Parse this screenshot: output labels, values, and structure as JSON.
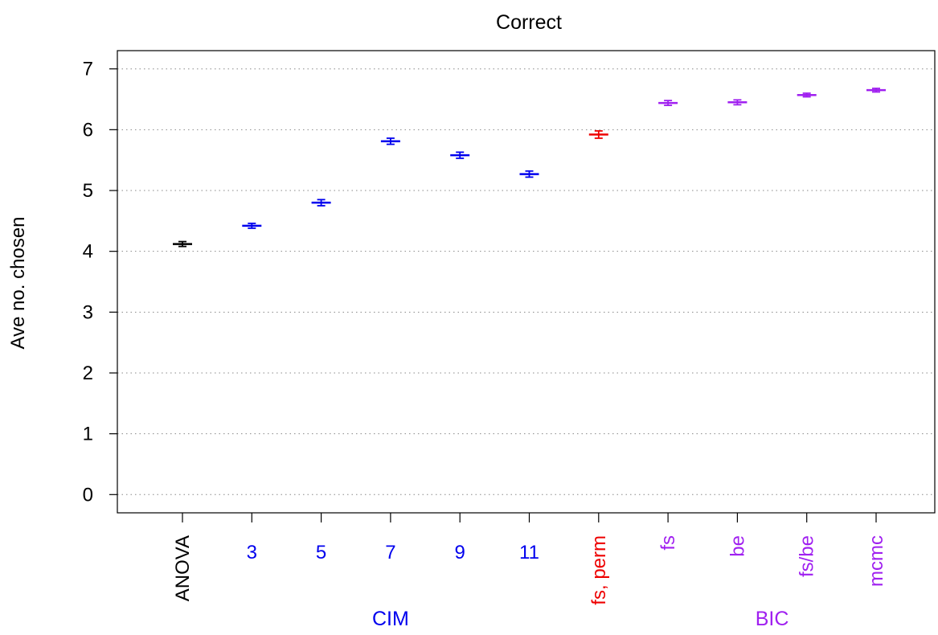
{
  "chart_data": {
    "type": "scatter",
    "title": "Correct",
    "ylabel": "Ave no. chosen",
    "xlabel": "",
    "ylim": [
      -0.3,
      7.3
    ],
    "yticks": [
      0,
      1,
      2,
      3,
      4,
      5,
      6,
      7
    ],
    "grid": true,
    "categories": [
      "ANOVA",
      "3",
      "5",
      "7",
      "9",
      "11",
      "fs, perm",
      "fs",
      "be",
      "fs/be",
      "mcmc"
    ],
    "values": [
      4.12,
      4.42,
      4.8,
      5.81,
      5.58,
      5.27,
      5.92,
      6.44,
      6.45,
      6.57,
      6.65
    ],
    "errors": [
      0.04,
      0.04,
      0.05,
      0.05,
      0.05,
      0.05,
      0.06,
      0.04,
      0.04,
      0.03,
      0.03
    ],
    "colors": [
      "#000000",
      "#0000ee",
      "#0000ee",
      "#0000ee",
      "#0000ee",
      "#0000ee",
      "#ee0000",
      "#a020f0",
      "#a020f0",
      "#a020f0",
      "#a020f0"
    ],
    "rotated_labels": [
      true,
      false,
      false,
      false,
      false,
      false,
      true,
      true,
      true,
      true,
      true
    ],
    "groups": [
      {
        "label": "CIM",
        "color": "#0000ee",
        "from": 1,
        "to": 5
      },
      {
        "label": "BIC",
        "color": "#a020f0",
        "from": 7,
        "to": 10
      }
    ]
  }
}
